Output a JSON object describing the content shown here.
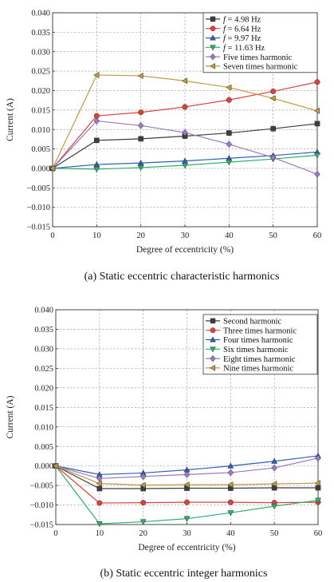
{
  "chart_data": [
    {
      "type": "line",
      "caption": "(a) Static eccentric characteristic harmonics",
      "xlabel": "Degree of eccentricity (%)",
      "ylabel": "Current (A)",
      "xlim": [
        0,
        60
      ],
      "ylim": [
        -0.015,
        0.04
      ],
      "xticks": [
        0,
        10,
        20,
        30,
        40,
        50,
        60
      ],
      "yticks": [
        -0.015,
        -0.01,
        -0.005,
        0.0,
        0.005,
        0.01,
        0.015,
        0.02,
        0.025,
        0.03,
        0.035,
        0.04
      ],
      "ytick_labels": [
        "−0.015",
        "−0.010",
        "−0.005",
        "0.000",
        "0.005",
        "0.010",
        "0.015",
        "0.020",
        "0.025",
        "0.030",
        "0.035",
        "0.040"
      ],
      "xtick_labels": [
        "0",
        "10",
        "20",
        "30",
        "40",
        "50",
        "60"
      ],
      "grid": "dashed",
      "legend_position": "top-right",
      "x": [
        0,
        10,
        20,
        30,
        40,
        50,
        60
      ],
      "series": [
        {
          "legend_prefix": "f",
          "legend_suffix": " = 4.98 Hz",
          "color": "#3d3d3d",
          "marker": "square",
          "values": [
            0.0,
            0.0072,
            0.0076,
            0.0083,
            0.0091,
            0.0102,
            0.0115
          ]
        },
        {
          "legend_prefix": "f",
          "legend_suffix": " = 6.64 Hz",
          "color": "#e0403a",
          "marker": "circle",
          "values": [
            0.0,
            0.0135,
            0.0144,
            0.0158,
            0.0176,
            0.0198,
            0.0222
          ]
        },
        {
          "legend_prefix": "f",
          "legend_suffix": " = 9.97 Hz",
          "color": "#2f5fb0",
          "marker": "triangle-up",
          "values": [
            0.0,
            0.001,
            0.0014,
            0.0019,
            0.0026,
            0.0033,
            0.0042
          ]
        },
        {
          "legend_prefix": "f",
          "legend_suffix": " = 11.63 Hz",
          "color": "#29b06a",
          "marker": "triangle-down",
          "values": [
            0.0,
            -0.0002,
            0.0002,
            0.0008,
            0.0016,
            0.0024,
            0.0034
          ]
        },
        {
          "name": "Five times harmonic",
          "color": "#9c79c4",
          "marker": "diamond",
          "values": [
            0.0,
            0.0122,
            0.011,
            0.0092,
            0.0062,
            0.0028,
            -0.0015
          ]
        },
        {
          "name": "Seven times harmonic",
          "color": "#c29a3c",
          "marker": "triangle-left",
          "values": [
            0.0,
            0.024,
            0.0238,
            0.0225,
            0.0208,
            0.018,
            0.0148
          ]
        }
      ]
    },
    {
      "type": "line",
      "caption": "(b) Static eccentric integer harmonics",
      "xlabel": "Degree of eccentricity (%)",
      "ylabel": "Current (A)",
      "xlim": [
        0,
        60
      ],
      "ylim": [
        -0.015,
        0.04
      ],
      "xticks": [
        0,
        10,
        20,
        30,
        40,
        50,
        60
      ],
      "yticks": [
        -0.015,
        -0.01,
        -0.005,
        0.0,
        0.005,
        0.01,
        0.015,
        0.02,
        0.025,
        0.03,
        0.035,
        0.04
      ],
      "ytick_labels": [
        "−0.015",
        "−0.010",
        "−0.005",
        "0.000",
        "0.005",
        "0.010",
        "0.015",
        "0.020",
        "0.025",
        "0.030",
        "0.035",
        "0.040"
      ],
      "xtick_labels": [
        "0",
        "10",
        "20",
        "30",
        "40",
        "50",
        "60"
      ],
      "grid": "dashed",
      "legend_position": "top-right",
      "x": [
        0,
        10,
        20,
        30,
        40,
        50,
        60
      ],
      "series": [
        {
          "name": "Second harmonic",
          "color": "#3d3d3d",
          "marker": "square",
          "values": [
            0.0,
            -0.0058,
            -0.0058,
            -0.0057,
            -0.0057,
            -0.0056,
            -0.0056
          ]
        },
        {
          "name": "Three times harmonic",
          "color": "#e0403a",
          "marker": "circle",
          "values": [
            0.0,
            -0.0095,
            -0.0094,
            -0.0093,
            -0.0093,
            -0.0094,
            -0.0093
          ]
        },
        {
          "name": "Four times harmonic",
          "color": "#2f5fb0",
          "marker": "triangle-up",
          "values": [
            0.0,
            -0.0022,
            -0.0018,
            -0.001,
            0.0,
            0.0012,
            0.0026
          ]
        },
        {
          "name": "Six times harmonic",
          "color": "#29b06a",
          "marker": "triangle-down",
          "values": [
            0.0,
            -0.0148,
            -0.0143,
            -0.0135,
            -0.012,
            -0.0103,
            -0.0088
          ]
        },
        {
          "name": "Eight times harmonic",
          "color": "#9c79c4",
          "marker": "diamond",
          "values": [
            0.0,
            -0.0032,
            -0.0027,
            -0.0022,
            -0.0017,
            -0.0005,
            0.002
          ]
        },
        {
          "name": "Nine times harmonic",
          "color": "#c29a3c",
          "marker": "triangle-left",
          "values": [
            0.0,
            -0.0045,
            -0.0049,
            -0.0048,
            -0.0048,
            -0.0046,
            -0.0044
          ]
        }
      ]
    }
  ]
}
